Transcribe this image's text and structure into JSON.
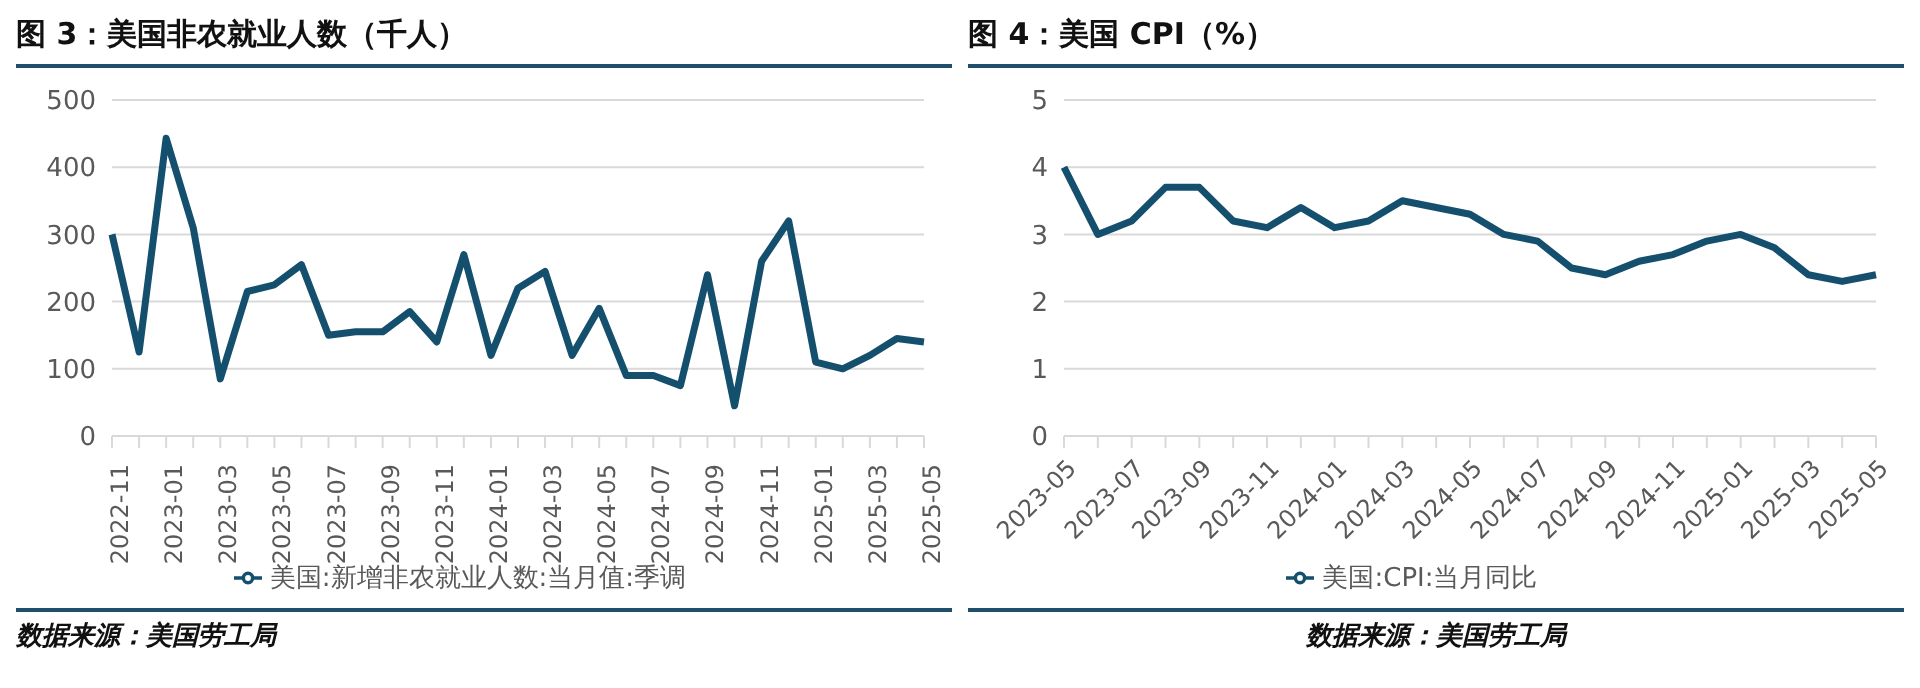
{
  "chart_data": [
    {
      "type": "line",
      "title": "图 3：美国非农就业人数（千人）",
      "categories": [
        "2022-11",
        null,
        "2023-01",
        null,
        "2023-03",
        null,
        "2023-05",
        null,
        "2023-07",
        null,
        "2023-09",
        null,
        "2023-11",
        null,
        "2024-01",
        null,
        "2024-03",
        null,
        "2024-05",
        null,
        "2024-07",
        null,
        "2024-09",
        null,
        "2024-11",
        null,
        "2025-01",
        null,
        "2025-03",
        null,
        "2025-05"
      ],
      "series": [
        {
          "name": "美国:新增非农就业人数:当月值:季调",
          "color": "#14506e",
          "values": [
            300,
            125,
            443,
            310,
            85,
            215,
            225,
            255,
            150,
            155,
            155,
            185,
            140,
            270,
            120,
            220,
            245,
            120,
            190,
            90,
            90,
            75,
            240,
            45,
            260,
            320,
            110,
            100,
            120,
            145,
            140
          ]
        }
      ],
      "ylim": [
        0,
        500
      ],
      "yticks": [
        0,
        100,
        200,
        300,
        400,
        500
      ],
      "grid": "y",
      "legend": "bottom",
      "marker": "none",
      "line_style": "solid",
      "annotations": [
        "数据来源：美国劳工局"
      ]
    },
    {
      "type": "line",
      "title": "图 4：美国 CPI（%）",
      "categories": [
        "2023-05",
        null,
        "2023-07",
        null,
        "2023-09",
        null,
        "2023-11",
        null,
        "2024-01",
        null,
        "2024-03",
        null,
        "2024-05",
        null,
        "2024-07",
        null,
        "2024-09",
        null,
        "2024-11",
        null,
        "2025-01",
        null,
        "2025-03",
        null,
        "2025-05"
      ],
      "series": [
        {
          "name": "美国:CPI:当月同比",
          "color": "#14506e",
          "values": [
            4.0,
            3.0,
            3.2,
            3.7,
            3.7,
            3.2,
            3.1,
            3.4,
            3.1,
            3.2,
            3.5,
            3.4,
            3.3,
            3.0,
            2.9,
            2.5,
            2.4,
            2.6,
            2.7,
            2.9,
            3.0,
            2.8,
            2.4,
            2.3,
            2.4
          ]
        }
      ],
      "ylim": [
        0,
        5
      ],
      "yticks": [
        0,
        1,
        2,
        3,
        4,
        5
      ],
      "grid": "y",
      "legend": "bottom",
      "marker": "none",
      "line_style": "solid",
      "annotations": [
        "数据来源：美国劳工局"
      ]
    }
  ]
}
